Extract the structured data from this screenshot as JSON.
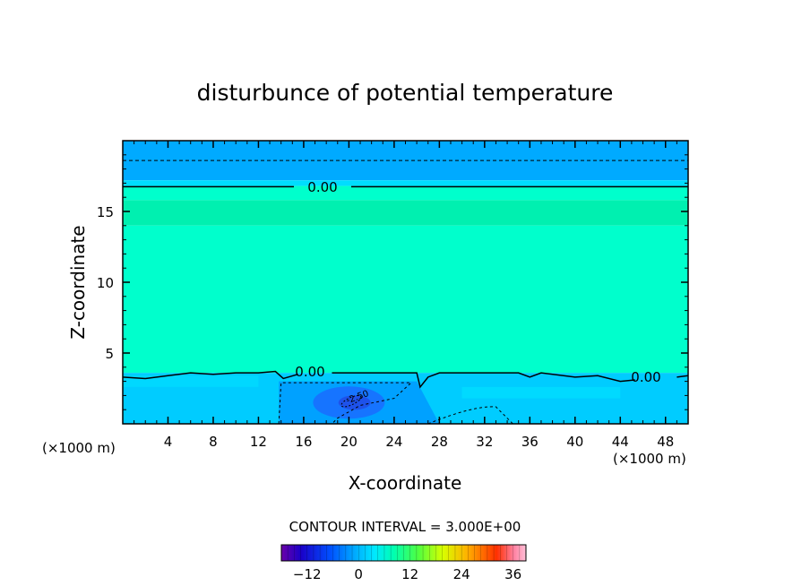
{
  "chart_data": {
    "type": "heatmap",
    "title": "disturbunce of potential temperature",
    "xlabel": "X-coordinate",
    "ylabel": "Z-coordinate",
    "x_unit_left": "(×1000 m)",
    "x_unit_right": "(×1000 m)",
    "xlim": [
      0,
      50
    ],
    "ylim": [
      0,
      20
    ],
    "x_ticks": [
      "4",
      "8",
      "12",
      "16",
      "20",
      "24",
      "28",
      "32",
      "36",
      "40",
      "44",
      "48"
    ],
    "y_ticks": [
      "5",
      "10",
      "15"
    ],
    "contour_labels": [
      "0.00",
      "0.00",
      "0.00",
      "-2.50"
    ],
    "contour_interval_text": "CONTOUR INTERVAL = 3.000E+00",
    "colorbar": {
      "ticks": [
        "-12",
        "0",
        "12",
        "24",
        "36"
      ],
      "range": [
        -18,
        39
      ]
    },
    "field": {
      "boundary_layer_top": 3.6,
      "bands": [
        {
          "z0": 17.2,
          "z1": 20.0,
          "value": -2.5,
          "color": "#00aaff"
        },
        {
          "z0": 16.8,
          "z1": 17.2,
          "value": -1.0,
          "color": "#00ddff"
        },
        {
          "z0": 15.8,
          "z1": 16.8,
          "value": 0.2,
          "color": "#00ffcc"
        },
        {
          "z0": 14.0,
          "z1": 15.8,
          "value": 0.5,
          "color": "#00f0b0"
        },
        {
          "z0": 3.6,
          "z1": 14.0,
          "value": 0.2,
          "color": "#00ffcc"
        },
        {
          "z0": 0.0,
          "z1": 3.6,
          "value": -1.5,
          "color": "#00ccff"
        }
      ],
      "cold_pool": {
        "x0": 13.8,
        "x1": 26.0,
        "z0": 0,
        "z1": 3.0,
        "value": -4.0,
        "color": "#0099ff"
      },
      "cold_core": {
        "x": 20.0,
        "z": 1.5,
        "value": -6.0,
        "color": "#1a6cff"
      }
    },
    "colors": {
      "upper_blue": "#00aaff",
      "main_field": "#00ffcc",
      "lower_layer": "#00ccff",
      "cold_pool": "#0099ff"
    }
  }
}
